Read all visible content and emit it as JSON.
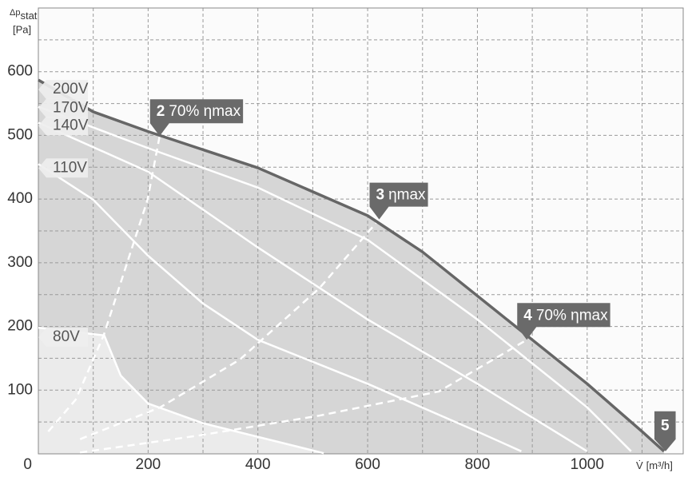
{
  "chart_data": {
    "type": "line",
    "y_label": {
      "symbol": "Δp",
      "subscript": "stat",
      "unit": "[Pa]"
    },
    "x_label": {
      "symbol": "V̇",
      "unit": "[m³/h]"
    },
    "xlim": [
      0,
      1175
    ],
    "ylim": [
      0,
      700
    ],
    "xticks": [
      200,
      400,
      600,
      800,
      1000
    ],
    "yticks": [
      0,
      100,
      200,
      300,
      400,
      500,
      600
    ],
    "minor_xticks": [
      100,
      300,
      500,
      700,
      900,
      1100
    ],
    "minor_yticks": [
      50,
      150,
      250,
      350,
      450,
      550,
      650
    ],
    "grid": true,
    "series": [
      {
        "name": "200V",
        "color": "#666666",
        "x": [
          0,
          100,
          200,
          400,
          600,
          700,
          800,
          900,
          1000,
          1100,
          1140
        ],
        "values": [
          587,
          537,
          506,
          449,
          374,
          317,
          248,
          179,
          110,
          35,
          4
        ]
      },
      {
        "name": "170V",
        "color": "#ffffff",
        "x": [
          0,
          200,
          400,
          600,
          800,
          1000,
          1080
        ],
        "values": [
          545,
          480,
          418,
          336,
          211,
          73,
          4
        ]
      },
      {
        "name": "140V",
        "color": "#ffffff",
        "x": [
          0,
          200,
          400,
          600,
          800,
          1000
        ],
        "values": [
          520,
          443,
          324,
          211,
          110,
          4
        ]
      },
      {
        "name": "110V",
        "color": "#ffffff",
        "x": [
          0,
          100,
          200,
          300,
          400,
          600,
          800,
          880
        ],
        "values": [
          455,
          399,
          311,
          236,
          179,
          110,
          35,
          4
        ]
      },
      {
        "name": "80V",
        "color": "#ffffff",
        "x": [
          0,
          120,
          150,
          200,
          300,
          450,
          520
        ],
        "values": [
          198,
          186,
          123,
          79,
          48,
          16,
          1
        ]
      }
    ],
    "efficiency_lines": [
      {
        "x": [
          18,
          68,
          119,
          199,
          221
        ],
        "values": [
          35,
          85,
          186,
          399,
          499
        ]
      },
      {
        "x": [
          76,
          222,
          367,
          512,
          621
        ],
        "values": [
          23,
          73,
          148,
          260,
          368
        ]
      },
      {
        "x": [
          76,
          294,
          512,
          730,
          890
        ],
        "values": [
          2,
          29,
          60,
          98,
          179
        ]
      }
    ],
    "annotations": [
      {
        "number": "2",
        "text": "70% ηmax"
      },
      {
        "number": "3",
        "text": "ηmax"
      },
      {
        "number": "4",
        "text": "70% ηmax"
      },
      {
        "number": "5"
      }
    ]
  }
}
